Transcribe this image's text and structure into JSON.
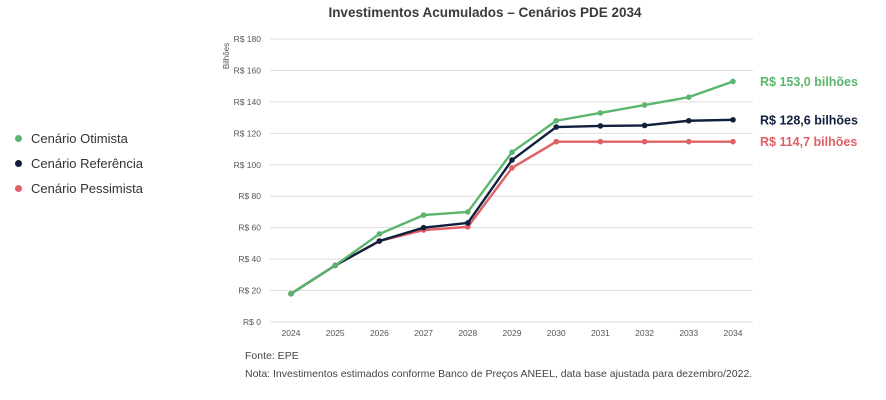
{
  "chart_data": {
    "type": "line",
    "title": "Investimentos Acumulados – Cenários PDE 2034",
    "ylabel": "Bilhões",
    "ylim": [
      0,
      180
    ],
    "yticks": [
      0,
      20,
      40,
      60,
      80,
      100,
      120,
      140,
      160,
      180
    ],
    "ytick_labels": [
      "R$ 0",
      "R$ 20",
      "R$ 40",
      "R$ 60",
      "R$ 80",
      "R$ 100",
      "R$ 120",
      "R$ 140",
      "R$ 160",
      "R$ 180"
    ],
    "categories": [
      "2024",
      "2025",
      "2026",
      "2027",
      "2028",
      "2029",
      "2030",
      "2031",
      "2032",
      "2033",
      "2034"
    ],
    "grid": true,
    "legend_position": "left",
    "series": [
      {
        "name": "Cenário Otimista",
        "color": "#5bb56e",
        "values": [
          18,
          36,
          56,
          68,
          70,
          108,
          128,
          133,
          138,
          143,
          153
        ],
        "end_label": "R$ 153,0 bilhões"
      },
      {
        "name": "Cenário Referência",
        "color": "#0f1f3c",
        "values": [
          18,
          36,
          51.5,
          60,
          63,
          103,
          124,
          124.7,
          125,
          128,
          128.6
        ],
        "end_label": "R$ 128,6 bilhões"
      },
      {
        "name": "Cenário Pessimista",
        "color": "#e06065",
        "values": [
          18,
          36,
          51.5,
          58.5,
          60.5,
          98,
          114.7,
          114.7,
          114.7,
          114.7,
          114.7
        ],
        "end_label": "R$ 114,7 bilhões"
      }
    ]
  },
  "notes": {
    "source": "Fonte: EPE",
    "note": "Nota: Investimentos estimados conforme Banco de Preços ANEEL, data base ajustada para dezembro/2022."
  }
}
